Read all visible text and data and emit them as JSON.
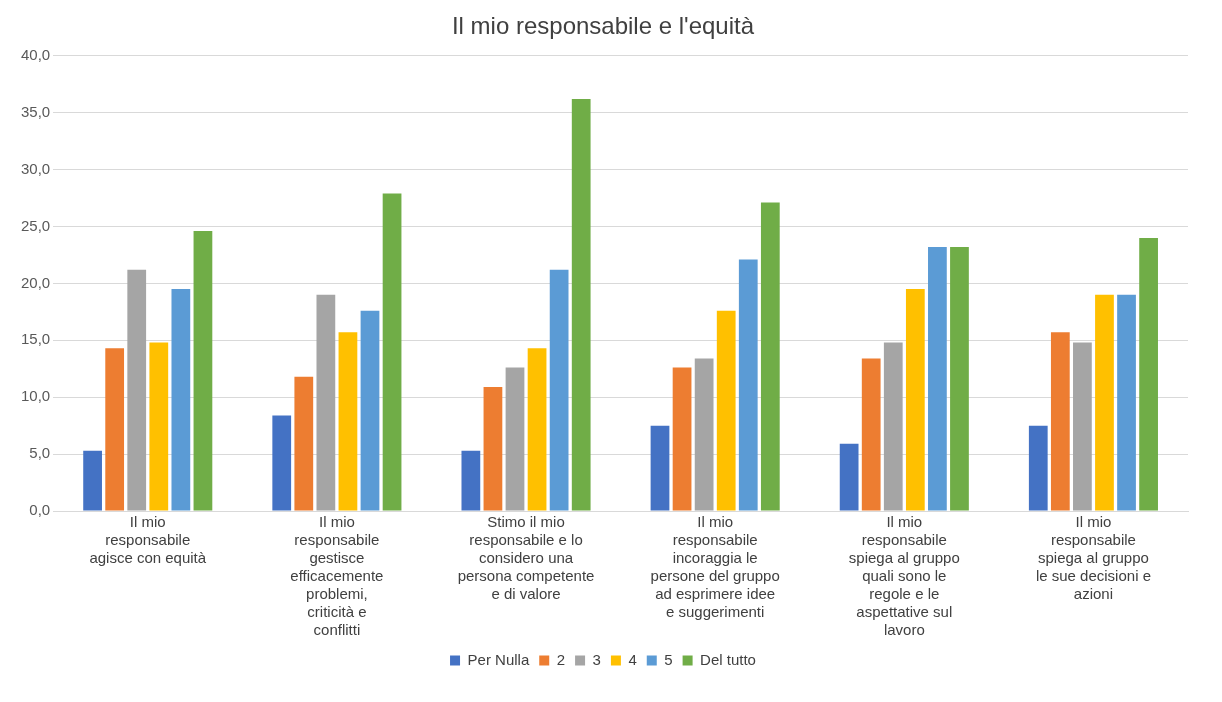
{
  "chart_data": {
    "type": "bar",
    "title": "Il mio responsabile e l'equità",
    "categories": [
      "Il mio responsabile agisce con equità",
      "Il mio responsabile gestisce efficacemente problemi, criticità e conflitti",
      "Stimo il mio responsabile e lo considero una persona competente e di valore",
      "Il mio responsabile incoraggia le persone del gruppo ad esprimere idee e suggerimenti",
      "Il mio responsabile spiega al gruppo quali sono le regole e le aspettative sul lavoro",
      "Il mio responsabile spiega al gruppo le sue decisioni e azioni"
    ],
    "series": [
      {
        "name": "Per Nulla",
        "color": "#4472c4",
        "values": [
          5.3,
          8.4,
          5.3,
          7.5,
          5.9,
          7.5
        ]
      },
      {
        "name": "2",
        "color": "#ed7d31",
        "values": [
          14.3,
          11.8,
          10.9,
          12.6,
          13.4,
          15.7
        ]
      },
      {
        "name": "3",
        "color": "#a5a5a5",
        "values": [
          21.2,
          19.0,
          12.6,
          13.4,
          14.8,
          14.8
        ]
      },
      {
        "name": "4",
        "color": "#ffc000",
        "values": [
          14.8,
          15.7,
          14.3,
          17.6,
          19.5,
          19.0
        ]
      },
      {
        "name": "5",
        "color": "#5b9bd5",
        "values": [
          19.5,
          17.6,
          21.2,
          22.1,
          23.2,
          19.0
        ]
      },
      {
        "name": "Del tutto",
        "color": "#70ad47",
        "values": [
          24.6,
          27.9,
          36.2,
          27.1,
          23.2,
          24.0
        ]
      }
    ],
    "ylim": [
      0,
      40
    ],
    "yticks": [
      {
        "value": 0,
        "label": "0,0"
      },
      {
        "value": 5,
        "label": "5,0"
      },
      {
        "value": 10,
        "label": "10,0"
      },
      {
        "value": 15,
        "label": "15,0"
      },
      {
        "value": 20,
        "label": "20,0"
      },
      {
        "value": 25,
        "label": "25,0"
      },
      {
        "value": 30,
        "label": "30,0"
      },
      {
        "value": 35,
        "label": "35,0"
      },
      {
        "value": 40,
        "label": "40,0"
      }
    ],
    "grid": "y",
    "legend": "bottom"
  }
}
